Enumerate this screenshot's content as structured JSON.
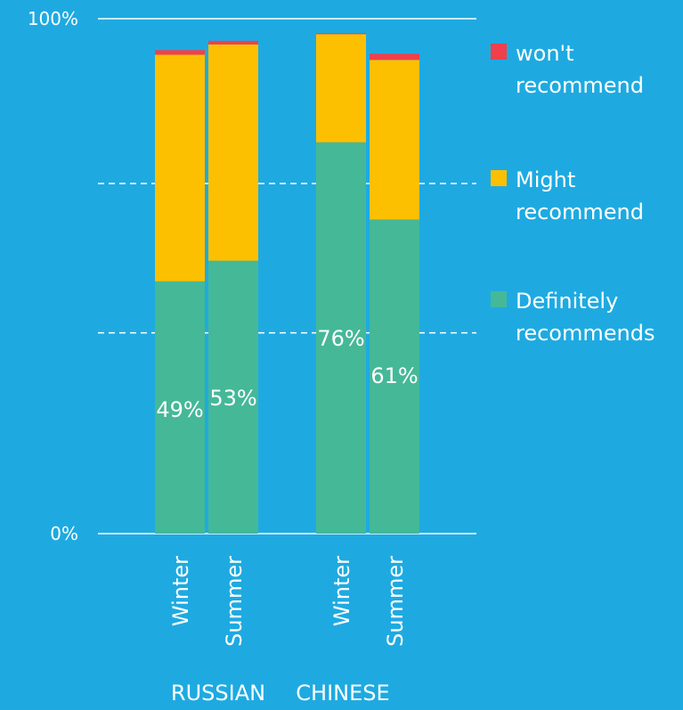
{
  "chart_data": {
    "type": "bar",
    "stacked": true,
    "categories": [
      "Winter",
      "Summer",
      "Winter",
      "Summer"
    ],
    "groups": [
      {
        "label": "RUSSIAN",
        "category_indices": [
          0,
          1
        ]
      },
      {
        "label": "CHINESE",
        "category_indices": [
          2,
          3
        ]
      }
    ],
    "series": [
      {
        "name": "Definitely recommends",
        "values": [
          49,
          53,
          76,
          61
        ],
        "color": "#45b898",
        "data_labels": [
          "49%",
          "53%",
          "76%",
          "61%"
        ]
      },
      {
        "name": "Might recommend",
        "values": [
          44,
          42,
          21,
          31
        ],
        "color": "#fcc000"
      },
      {
        "name": "won't recommend",
        "values": [
          0.9,
          0.7,
          0.2,
          1.2
        ],
        "color": "#f1404b"
      }
    ],
    "y_ticks": [
      {
        "value": 0,
        "label": "0%"
      },
      {
        "value": 100,
        "label": "100%"
      }
    ],
    "ylim": [
      0,
      100
    ],
    "gridlines": [
      {
        "value": 0,
        "style": "solid"
      },
      {
        "value": 39,
        "style": "dashed"
      },
      {
        "value": 68,
        "style": "dashed"
      },
      {
        "value": 100,
        "style": "solid"
      }
    ],
    "legend": {
      "position": "right",
      "order": [
        "won't recommend",
        "Might recommend",
        "Definitely recommends"
      ]
    }
  }
}
